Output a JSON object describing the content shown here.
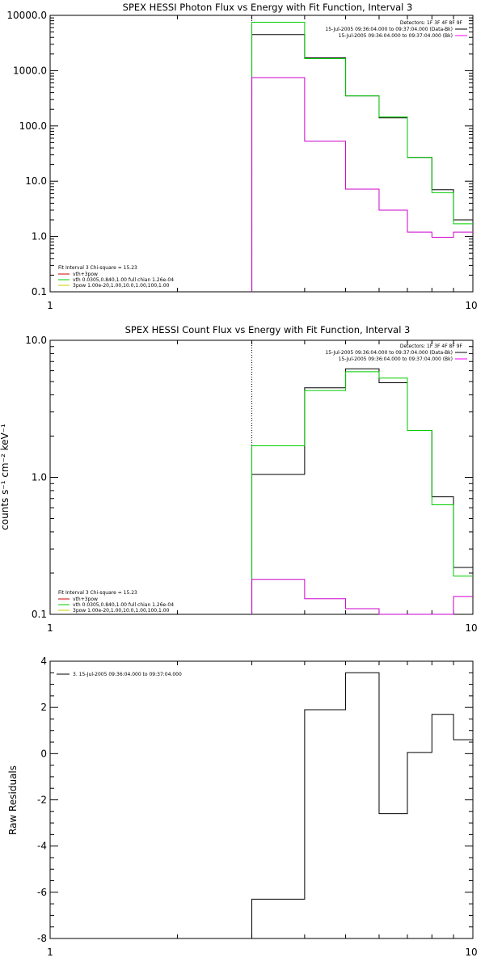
{
  "chart_data": [
    {
      "type": "line",
      "title": "SPEX HESSI Photon Flux vs Energy with Fit Function, Interval 3",
      "ylabel": "",
      "scale": {
        "x": "log",
        "y": "log"
      },
      "xlim": [
        1,
        10
      ],
      "ylim": [
        0.1,
        10000
      ],
      "x_tick_labels": [
        "1",
        "10"
      ],
      "y_tick_values": [
        0.1,
        1,
        10,
        100,
        1000,
        10000
      ],
      "y_tick_labels": [
        "0.1",
        "1.0",
        "10.0",
        "100.0",
        "1000.0",
        "10000.0"
      ],
      "vline_x": 3.0,
      "bin_edges": [
        3,
        4,
        5,
        6,
        7,
        8,
        9,
        10
      ],
      "legend_top": {
        "line1": "Detectors: 1F 3F 4F 8F 9F",
        "entries": [
          {
            "text": "15-Jul-2005 09:36:04.000 to 09:37:04.000 (Data-Bk)",
            "color": "#000000"
          },
          {
            "text": "15-Jul-2005 09:36:04.000 to 09:37:04.000 (Bk)",
            "color": "#ff00ff"
          }
        ]
      },
      "legend_bottom": {
        "header": "Fit Interval 3    Chi-square = 15.23",
        "entries": [
          {
            "text": "vth+3pow",
            "color": "#cc0000"
          },
          {
            "text": "vth 0.0305,0.840,1.00  full chian 1.26e-04",
            "color": "#00cc00"
          },
          {
            "text": "3pow 1.00e-20,1.00,10.0,1.00,100,1.00",
            "color": "#cccc00"
          }
        ]
      },
      "series": [
        {
          "color": "#000000",
          "values": [
            4500,
            1700,
            350,
            140,
            27,
            7,
            2
          ]
        },
        {
          "color": "#00cc00",
          "values": [
            7500,
            1650,
            350,
            145,
            27,
            6.2,
            1.7
          ]
        },
        {
          "color": "#cc00cc",
          "values": [
            750,
            53,
            7.2,
            3.0,
            1.2,
            0.97,
            1.2
          ]
        }
      ]
    },
    {
      "type": "line",
      "title": "SPEX HESSI Count Flux vs Energy with Fit Function, Interval 3",
      "ylabel": "counts s⁻¹ cm⁻² keV⁻¹",
      "scale": {
        "x": "log",
        "y": "log"
      },
      "xlim": [
        1,
        10
      ],
      "ylim": [
        0.1,
        10
      ],
      "x_tick_labels": [
        "1",
        "10"
      ],
      "y_tick_values": [
        0.1,
        1,
        10
      ],
      "y_tick_labels": [
        "0.1",
        "1.0",
        "10.0"
      ],
      "vline_x": 3.0,
      "bin_edges": [
        3,
        4,
        5,
        6,
        7,
        8,
        9,
        10
      ],
      "legend_top": {
        "line1": "Detectors: 1F 3F 4F 8F 9F",
        "entries": [
          {
            "text": "15-Jul-2005 09:36:04.000 to 09:37:04.000 (Data-Bk)",
            "color": "#000000"
          },
          {
            "text": "15-Jul-2005 09:36:04.000 to 09:37:04.000 (Bk)",
            "color": "#ff00ff"
          }
        ]
      },
      "legend_bottom": {
        "header": "Fit Interval 3    Chi-square = 15.23",
        "entries": [
          {
            "text": "vth+3pow",
            "color": "#cc0000"
          },
          {
            "text": "vth 0.0305,0.840,1.00  full chian 1.26e-04",
            "color": "#00cc00"
          },
          {
            "text": "3pow 1.00e-20,1.00,10.0,1.00,100,1.00",
            "color": "#cccc00"
          }
        ]
      },
      "series": [
        {
          "color": "#000000",
          "values": [
            1.05,
            4.5,
            6.2,
            4.9,
            2.2,
            0.72,
            0.22
          ]
        },
        {
          "color": "#00cc00",
          "values": [
            1.7,
            4.3,
            5.9,
            5.3,
            2.2,
            0.63,
            0.19
          ]
        },
        {
          "color": "#cc00cc",
          "values": [
            0.18,
            0.13,
            0.11,
            0.1,
            0.099,
            0.1,
            0.135
          ]
        }
      ]
    },
    {
      "type": "line",
      "title": "",
      "ylabel": "Raw Residuals",
      "scale": {
        "x": "log",
        "y": "linear"
      },
      "xlim": [
        1,
        10
      ],
      "ylim": [
        -8,
        4
      ],
      "x_tick_labels": [
        "1",
        "10"
      ],
      "y_tick_values": [
        -8,
        -6,
        -4,
        -2,
        0,
        2,
        4
      ],
      "y_tick_labels": [
        "-8",
        "-6",
        "-4",
        "-2",
        "0",
        "2",
        "4"
      ],
      "bin_edges": [
        3,
        4,
        5,
        6,
        7,
        8,
        9,
        10
      ],
      "legend_top": {
        "line1": "",
        "entries": [
          {
            "text": "3. 15-Jul-2005 09:36:04.000 to 09:37:04.000",
            "color": "#000000"
          }
        ]
      },
      "series": [
        {
          "color": "#000000",
          "values": [
            -6.3,
            1.9,
            3.5,
            -2.6,
            0.05,
            1.7,
            0.6
          ]
        }
      ]
    }
  ]
}
